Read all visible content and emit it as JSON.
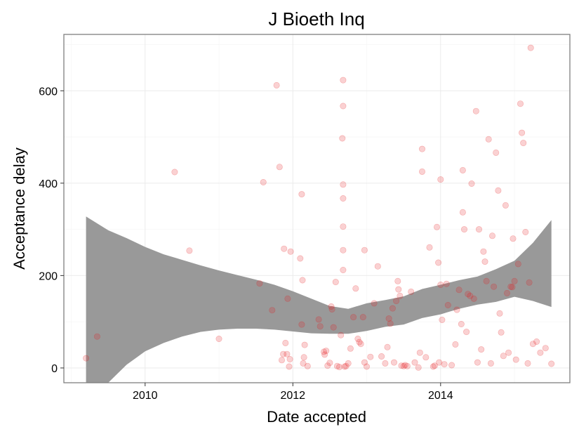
{
  "chart_data": {
    "type": "scatter",
    "title": "J Bioeth Inq",
    "xlabel": "Date accepted",
    "ylabel": "Acceptance delay",
    "x_ticks": [
      "2010",
      "2012",
      "2014"
    ],
    "y_ticks": [
      0,
      200,
      400,
      600
    ],
    "xlim": [
      2008.9,
      2015.75
    ],
    "ylim": [
      -32,
      722
    ],
    "grid": true,
    "point_color": "#e41a1c",
    "point_alpha": 0.2,
    "smooth_band_color": "#999999",
    "points": [
      [
        2009.2,
        21
      ],
      [
        2009.35,
        68
      ],
      [
        2010.4,
        424
      ],
      [
        2010.6,
        254
      ],
      [
        2011.0,
        63
      ],
      [
        2011.55,
        183
      ],
      [
        2011.6,
        402
      ],
      [
        2011.72,
        125
      ],
      [
        2011.78,
        612
      ],
      [
        2011.82,
        435
      ],
      [
        2011.85,
        17
      ],
      [
        2011.87,
        30
      ],
      [
        2011.88,
        258
      ],
      [
        2011.9,
        54
      ],
      [
        2011.92,
        30
      ],
      [
        2011.93,
        150
      ],
      [
        2011.95,
        3
      ],
      [
        2011.96,
        19
      ],
      [
        2011.97,
        252
      ],
      [
        2012.1,
        237
      ],
      [
        2012.12,
        94
      ],
      [
        2012.12,
        376
      ],
      [
        2012.13,
        190
      ],
      [
        2012.14,
        10
      ],
      [
        2012.15,
        23
      ],
      [
        2012.16,
        50
      ],
      [
        2012.2,
        4
      ],
      [
        2012.35,
        105
      ],
      [
        2012.37,
        90
      ],
      [
        2012.42,
        35
      ],
      [
        2012.43,
        29
      ],
      [
        2012.45,
        37
      ],
      [
        2012.47,
        5
      ],
      [
        2012.5,
        11
      ],
      [
        2012.52,
        133
      ],
      [
        2012.53,
        127
      ],
      [
        2012.55,
        88
      ],
      [
        2012.58,
        186
      ],
      [
        2012.6,
        4
      ],
      [
        2012.63,
        2
      ],
      [
        2012.65,
        71
      ],
      [
        2012.67,
        497
      ],
      [
        2012.68,
        623
      ],
      [
        2012.68,
        567
      ],
      [
        2012.68,
        397
      ],
      [
        2012.68,
        367
      ],
      [
        2012.68,
        306
      ],
      [
        2012.68,
        255
      ],
      [
        2012.68,
        212
      ],
      [
        2012.7,
        3
      ],
      [
        2012.72,
        4
      ],
      [
        2012.75,
        10
      ],
      [
        2012.78,
        42
      ],
      [
        2012.82,
        110
      ],
      [
        2012.85,
        172
      ],
      [
        2012.88,
        63
      ],
      [
        2012.9,
        56
      ],
      [
        2012.92,
        52
      ],
      [
        2012.95,
        110
      ],
      [
        2012.97,
        255
      ],
      [
        2012.97,
        12
      ],
      [
        2013.0,
        3
      ],
      [
        2013.05,
        24
      ],
      [
        2013.1,
        140
      ],
      [
        2013.15,
        220
      ],
      [
        2013.2,
        25
      ],
      [
        2013.25,
        10
      ],
      [
        2013.28,
        45
      ],
      [
        2013.3,
        107
      ],
      [
        2013.32,
        96
      ],
      [
        2013.35,
        129
      ],
      [
        2013.37,
        12
      ],
      [
        2013.4,
        145
      ],
      [
        2013.42,
        188
      ],
      [
        2013.43,
        170
      ],
      [
        2013.45,
        156
      ],
      [
        2013.47,
        5
      ],
      [
        2013.5,
        4
      ],
      [
        2013.52,
        6
      ],
      [
        2013.55,
        4
      ],
      [
        2013.6,
        165
      ],
      [
        2013.65,
        12
      ],
      [
        2013.7,
        1
      ],
      [
        2013.72,
        33
      ],
      [
        2013.75,
        474
      ],
      [
        2013.75,
        425
      ],
      [
        2013.8,
        23
      ],
      [
        2013.85,
        261
      ],
      [
        2013.9,
        3
      ],
      [
        2013.92,
        5
      ],
      [
        2013.95,
        305
      ],
      [
        2013.97,
        228
      ],
      [
        2013.98,
        12
      ],
      [
        2014.0,
        408
      ],
      [
        2014.0,
        180
      ],
      [
        2014.02,
        104
      ],
      [
        2014.05,
        8
      ],
      [
        2014.08,
        182
      ],
      [
        2014.1,
        136
      ],
      [
        2014.15,
        6
      ],
      [
        2014.2,
        51
      ],
      [
        2014.22,
        126
      ],
      [
        2014.25,
        169
      ],
      [
        2014.28,
        95
      ],
      [
        2014.3,
        428
      ],
      [
        2014.3,
        337
      ],
      [
        2014.32,
        300
      ],
      [
        2014.35,
        78
      ],
      [
        2014.37,
        160
      ],
      [
        2014.4,
        156
      ],
      [
        2014.42,
        399
      ],
      [
        2014.45,
        150
      ],
      [
        2014.48,
        556
      ],
      [
        2014.5,
        12
      ],
      [
        2014.52,
        300
      ],
      [
        2014.55,
        40
      ],
      [
        2014.58,
        252
      ],
      [
        2014.6,
        230
      ],
      [
        2014.62,
        188
      ],
      [
        2014.65,
        495
      ],
      [
        2014.68,
        10
      ],
      [
        2014.7,
        286
      ],
      [
        2014.72,
        176
      ],
      [
        2014.75,
        466
      ],
      [
        2014.78,
        384
      ],
      [
        2014.8,
        118
      ],
      [
        2014.82,
        77
      ],
      [
        2014.85,
        26
      ],
      [
        2014.88,
        352
      ],
      [
        2014.9,
        162
      ],
      [
        2014.92,
        33
      ],
      [
        2014.95,
        176
      ],
      [
        2014.97,
        175
      ],
      [
        2014.98,
        280
      ],
      [
        2015.0,
        188
      ],
      [
        2015.02,
        18
      ],
      [
        2015.05,
        225
      ],
      [
        2015.08,
        572
      ],
      [
        2015.1,
        509
      ],
      [
        2015.12,
        487
      ],
      [
        2015.15,
        294
      ],
      [
        2015.18,
        10
      ],
      [
        2015.2,
        185
      ],
      [
        2015.22,
        693
      ],
      [
        2015.25,
        52
      ],
      [
        2015.3,
        57
      ],
      [
        2015.35,
        33
      ],
      [
        2015.42,
        43
      ],
      [
        2015.5,
        9
      ]
    ],
    "smooth_upper": [
      [
        2009.2,
        328
      ],
      [
        2009.5,
        298
      ],
      [
        2009.75,
        281
      ],
      [
        2010.0,
        262
      ],
      [
        2010.25,
        246
      ],
      [
        2010.5,
        234
      ],
      [
        2010.75,
        222
      ],
      [
        2011.0,
        211
      ],
      [
        2011.25,
        201
      ],
      [
        2011.5,
        191
      ],
      [
        2011.75,
        180
      ],
      [
        2012.0,
        166
      ],
      [
        2012.25,
        150
      ],
      [
        2012.5,
        134
      ],
      [
        2012.75,
        128
      ],
      [
        2013.0,
        140
      ],
      [
        2013.25,
        147
      ],
      [
        2013.5,
        155
      ],
      [
        2013.75,
        171
      ],
      [
        2014.0,
        180
      ],
      [
        2014.25,
        190
      ],
      [
        2014.5,
        198
      ],
      [
        2014.75,
        214
      ],
      [
        2015.0,
        232
      ],
      [
        2015.25,
        271
      ],
      [
        2015.5,
        320
      ]
    ],
    "smooth_lower": [
      [
        2009.2,
        -32
      ],
      [
        2009.5,
        -32
      ],
      [
        2009.75,
        7
      ],
      [
        2010.0,
        36
      ],
      [
        2010.25,
        54
      ],
      [
        2010.5,
        68
      ],
      [
        2010.75,
        78
      ],
      [
        2011.0,
        83
      ],
      [
        2011.25,
        85
      ],
      [
        2011.5,
        85
      ],
      [
        2011.75,
        83
      ],
      [
        2012.0,
        79
      ],
      [
        2012.25,
        75
      ],
      [
        2012.5,
        74
      ],
      [
        2012.75,
        74
      ],
      [
        2013.0,
        80
      ],
      [
        2013.25,
        89
      ],
      [
        2013.5,
        94
      ],
      [
        2013.75,
        108
      ],
      [
        2014.0,
        116
      ],
      [
        2014.25,
        128
      ],
      [
        2014.5,
        137
      ],
      [
        2014.75,
        143
      ],
      [
        2015.0,
        154
      ],
      [
        2015.25,
        145
      ],
      [
        2015.5,
        132
      ]
    ]
  }
}
